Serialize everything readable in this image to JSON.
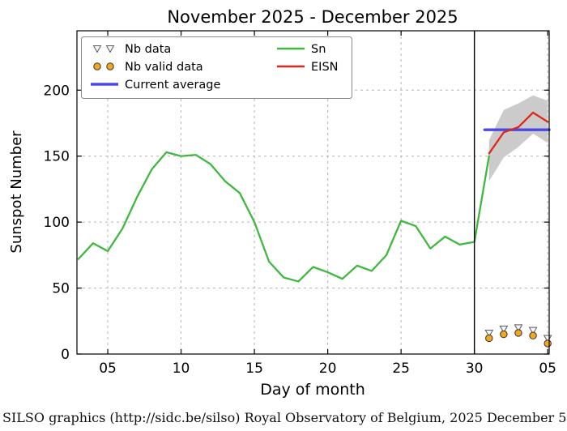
{
  "footer_text": "SILSO graphics (http://sidc.be/silso) Royal Observatory of Belgium, 2025 December 5",
  "chart_data": {
    "type": "line",
    "title": "November 2025 - December 2025",
    "xlabel": "Day of month",
    "ylabel": "Sunspot Number",
    "xlim": [
      2.9,
      35.1
    ],
    "ylim": [
      0,
      245
    ],
    "xticks": [
      {
        "v": 5,
        "label": "05"
      },
      {
        "v": 10,
        "label": "10"
      },
      {
        "v": 15,
        "label": "15"
      },
      {
        "v": 20,
        "label": "20"
      },
      {
        "v": 25,
        "label": "25"
      },
      {
        "v": 30,
        "label": "30"
      },
      {
        "v": 35,
        "label": "05"
      }
    ],
    "yticks": [
      0,
      50,
      100,
      150,
      200
    ],
    "colors": {
      "grid": "#b3b3b3",
      "frame": "#000000",
      "sn": "#3fb83f",
      "eisn": "#e02818",
      "average": "#4a4ae0",
      "band": "#cbcbcb"
    },
    "divider": {
      "x": 30,
      "color": "#000000"
    },
    "band": {
      "name": "EISN uncertainty band",
      "color": "#cbcbcb",
      "x": [
        31,
        32,
        33,
        34,
        35
      ],
      "upper": [
        162,
        185,
        190,
        196,
        192
      ],
      "lower": [
        131,
        149,
        157,
        167,
        160
      ]
    },
    "series": [
      {
        "id": "sn",
        "name": "Sn",
        "color": "#3fb83f",
        "width": 2.3,
        "x": [
          3,
          4,
          5,
          6,
          7,
          8,
          9,
          10,
          11,
          12,
          13,
          14,
          15,
          16,
          17,
          18,
          19,
          20,
          21,
          22,
          23,
          24,
          25,
          26,
          27,
          28,
          29,
          30,
          31
        ],
        "y": [
          72,
          84,
          78,
          95,
          119,
          140,
          153,
          150,
          151,
          144,
          131,
          122,
          100,
          70,
          58,
          55,
          66,
          62,
          57,
          67,
          63,
          75,
          101,
          97,
          80,
          89,
          83,
          85,
          150
        ]
      },
      {
        "id": "current-average",
        "name": "Current average",
        "color": "#4a4ae0",
        "width": 3.4,
        "x": [
          30.7,
          35.1
        ],
        "y": [
          170,
          170
        ]
      },
      {
        "id": "eisn",
        "name": "EISN",
        "color": "#e02818",
        "width": 2.3,
        "x": [
          31,
          32,
          33,
          34,
          35
        ],
        "y": [
          152,
          168,
          172,
          183,
          176
        ]
      }
    ],
    "markers": [
      {
        "id": "nb-data",
        "name": "Nb data",
        "shape": "triangle-down",
        "fill": "#f5f5f5",
        "stroke": "#5a5a5a",
        "x": [
          31,
          32,
          33,
          34,
          35
        ],
        "y": [
          16,
          19,
          20,
          18,
          12
        ]
      },
      {
        "id": "nb-valid-data",
        "name": "Nb valid data",
        "shape": "circle",
        "fill": "#f2a71f",
        "stroke": "#333333",
        "x": [
          31,
          32,
          33,
          34,
          35
        ],
        "y": [
          12,
          15,
          16,
          14,
          8
        ]
      }
    ],
    "legend": {
      "position": "upper left",
      "columns": [
        [
          {
            "label": "Nb data",
            "swatch": "triangles"
          },
          {
            "label": "Nb valid data",
            "swatch": "circles"
          },
          {
            "label": "Current average",
            "swatch": "line",
            "color": "#4a4ae0",
            "width": 3.4
          }
        ],
        [
          {
            "label": "Sn",
            "swatch": "line",
            "color": "#3fb83f",
            "width": 2.5
          },
          {
            "label": "EISN",
            "swatch": "line",
            "color": "#e02818",
            "width": 2.5
          }
        ]
      ]
    }
  }
}
